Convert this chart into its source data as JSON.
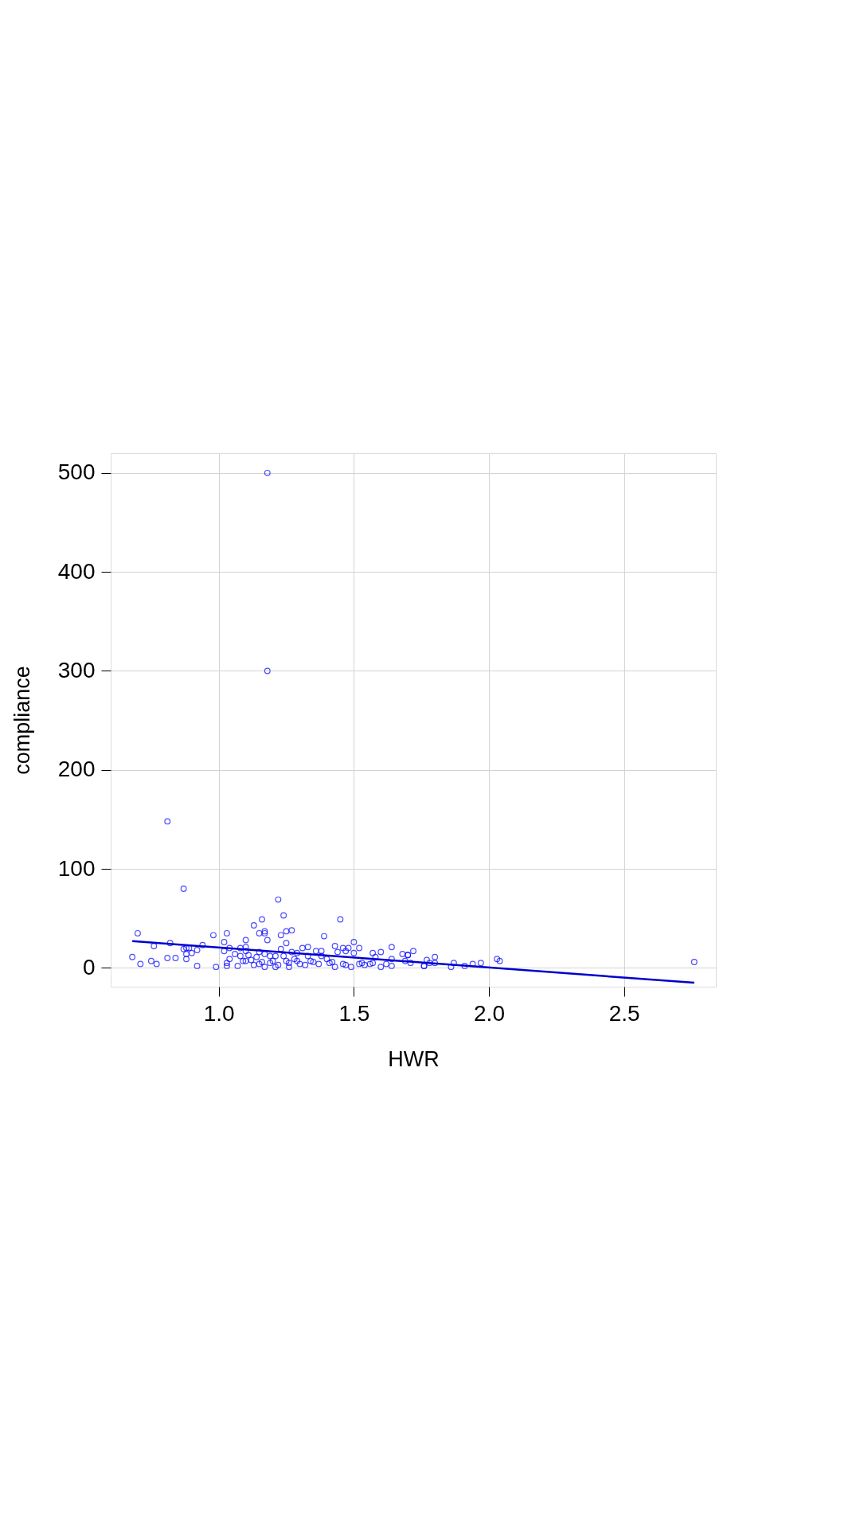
{
  "chart_data": {
    "type": "scatter",
    "xlabel": "HWR",
    "ylabel": "compliance",
    "xlim": [
      0.6,
      2.84
    ],
    "ylim": [
      -19,
      520
    ],
    "xticks": [
      {
        "value": 1.0,
        "label": "1.0"
      },
      {
        "value": 1.5,
        "label": "1.5"
      },
      {
        "value": 2.0,
        "label": "2.0"
      },
      {
        "value": 2.5,
        "label": "2.5"
      }
    ],
    "yticks": [
      0,
      100,
      200,
      300,
      400,
      500
    ],
    "grid": true,
    "series": [
      {
        "color": "#0000ff",
        "marker": "circle",
        "x": [
          0.68,
          0.7,
          0.71,
          0.75,
          0.76,
          0.77,
          0.81,
          0.82,
          0.81,
          0.84,
          0.87,
          0.87,
          0.88,
          0.89,
          0.88,
          0.88,
          0.9,
          0.92,
          0.92,
          0.94,
          0.98,
          0.99,
          1.02,
          1.03,
          1.02,
          1.03,
          1.04,
          1.04,
          1.03,
          1.06,
          1.07,
          1.08,
          1.08,
          1.09,
          1.1,
          1.1,
          1.1,
          1.11,
          1.1,
          1.13,
          1.13,
          1.14,
          1.15,
          1.15,
          1.15,
          1.16,
          1.17,
          1.17,
          1.17,
          1.17,
          1.18,
          1.19,
          1.19,
          1.2,
          1.21,
          1.21,
          1.22,
          1.23,
          1.23,
          1.24,
          1.25,
          1.25,
          1.27,
          1.24,
          1.25,
          1.26,
          1.27,
          1.28,
          1.29,
          1.3,
          1.31,
          1.33,
          1.33,
          1.34,
          1.36,
          1.38,
          1.38,
          1.39,
          1.4,
          1.41,
          1.43,
          1.43,
          1.44,
          1.45,
          1.46,
          1.46,
          1.47,
          1.48,
          1.5,
          1.5,
          1.49,
          1.52,
          1.52,
          1.54,
          1.57,
          1.57,
          1.58,
          1.6,
          1.6,
          1.62,
          1.64,
          1.64,
          1.64,
          1.68,
          1.69,
          1.7,
          1.72,
          1.71,
          1.76,
          1.7,
          1.8,
          1.77,
          1.78,
          1.76,
          1.8,
          1.86,
          1.87,
          1.91,
          1.94,
          1.97,
          2.03,
          2.04,
          2.76,
          1.18,
          1.18,
          1.12,
          1.16,
          1.22,
          1.26,
          1.29,
          1.32,
          1.35,
          1.37,
          1.42,
          1.47,
          1.53,
          1.56
        ],
        "values": [
          11,
          35,
          4,
          7,
          22,
          4,
          148,
          25,
          10,
          10,
          80,
          19,
          20,
          20,
          14,
          9,
          15,
          18,
          2,
          23,
          33,
          1,
          26,
          35,
          17,
          2,
          20,
          9,
          5,
          14,
          2,
          20,
          12,
          7,
          28,
          21,
          17,
          13,
          7,
          3,
          43,
          11,
          35,
          16,
          4,
          49,
          37,
          35,
          14,
          1,
          28,
          12,
          5,
          7,
          12,
          1,
          69,
          33,
          19,
          53,
          25,
          37,
          38,
          12,
          7,
          1,
          16,
          9,
          15,
          4,
          20,
          21,
          12,
          7,
          17,
          12,
          17,
          32,
          9,
          5,
          22,
          1,
          16,
          49,
          20,
          4,
          17,
          20,
          26,
          15,
          1,
          20,
          4,
          3,
          15,
          5,
          11,
          16,
          1,
          4,
          21,
          9,
          2,
          14,
          7,
          13,
          17,
          5,
          2,
          13,
          11,
          8,
          5,
          2,
          5,
          1,
          5,
          2,
          4,
          5,
          9,
          7,
          6,
          500,
          300,
          8,
          6,
          3,
          5,
          7,
          3,
          6,
          4,
          6,
          3,
          5,
          4
        ]
      },
      {
        "type": "line",
        "color": "#0000cd",
        "x": [
          0.68,
          2.76
        ],
        "values": [
          27,
          -15
        ]
      }
    ]
  }
}
